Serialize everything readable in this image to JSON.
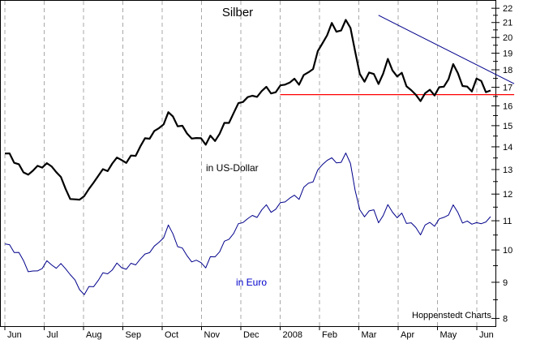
{
  "chart_data": {
    "type": "line",
    "title": "Silber",
    "credit": "Hoppenstedt Charts",
    "x_ticks": [
      "Jun",
      "Jul",
      "Aug",
      "Sep",
      "Oct",
      "Nov",
      "Dec",
      "2008",
      "Feb",
      "Mar",
      "Apr",
      "May",
      "Jun"
    ],
    "y_scale": "log",
    "y_ticks": [
      8,
      9,
      10,
      11,
      12,
      13,
      14,
      15,
      16,
      17,
      18,
      19,
      20,
      21,
      22
    ],
    "ylim": [
      7.8,
      22.6
    ],
    "grid": "vertical-dashed",
    "series": [
      {
        "name": "in US-Dollar",
        "color": "#000000",
        "label_color": "#000000",
        "values": [
          13.7,
          13.6,
          13.4,
          13.2,
          12.8,
          12.9,
          12.9,
          13.1,
          13.2,
          13.2,
          13.1,
          13.0,
          12.6,
          12.2,
          11.9,
          11.7,
          11.8,
          12.0,
          12.1,
          12.5,
          12.8,
          12.9,
          13.0,
          13.3,
          13.4,
          13.5,
          13.3,
          13.5,
          13.7,
          14.0,
          14.3,
          14.5,
          14.7,
          14.8,
          15.2,
          15.6,
          15.4,
          15.1,
          14.9,
          14.6,
          14.5,
          14.3,
          14.4,
          14.2,
          14.4,
          14.3,
          14.7,
          15.0,
          15.2,
          15.7,
          16.0,
          16.3,
          16.5,
          16.4,
          16.6,
          16.8,
          16.9,
          16.8,
          16.7,
          17.0,
          17.3,
          17.2,
          17.4,
          17.3,
          17.6,
          17.8,
          18.2,
          19.0,
          19.6,
          20.3,
          20.8,
          20.4,
          20.6,
          21.0,
          20.7,
          19.2,
          17.6,
          17.4,
          17.9,
          17.6,
          17.3,
          17.8,
          18.5,
          18.1,
          17.6,
          17.7,
          17.2,
          16.8,
          16.5,
          16.4,
          16.6,
          16.8,
          16.7,
          16.9,
          17.0,
          17.6,
          18.2,
          17.8,
          17.2,
          16.9,
          16.8,
          17.6,
          17.2,
          16.8,
          16.9
        ]
      },
      {
        "name": "in Euro",
        "color": "#00008b",
        "label_color": "#0000cc",
        "values": [
          10.2,
          10.1,
          10.0,
          9.9,
          9.6,
          9.4,
          9.3,
          9.3,
          9.5,
          9.6,
          9.5,
          9.5,
          9.5,
          9.4,
          9.3,
          9.0,
          8.8,
          8.7,
          8.8,
          8.9,
          9.1,
          9.2,
          9.3,
          9.4,
          9.5,
          9.5,
          9.4,
          9.5,
          9.6,
          9.7,
          9.8,
          10.0,
          10.1,
          10.2,
          10.5,
          10.8,
          10.5,
          10.2,
          10.0,
          9.8,
          9.7,
          9.6,
          9.6,
          9.5,
          9.7,
          9.8,
          10.0,
          10.2,
          10.4,
          10.6,
          10.8,
          11.0,
          11.1,
          11.1,
          11.2,
          11.4,
          11.5,
          11.4,
          11.4,
          11.6,
          11.8,
          11.8,
          11.9,
          11.9,
          12.2,
          12.4,
          12.6,
          12.9,
          13.2,
          13.5,
          13.4,
          13.3,
          13.4,
          13.6,
          13.3,
          12.2,
          11.3,
          11.2,
          11.4,
          11.3,
          11.0,
          11.2,
          11.5,
          11.4,
          11.1,
          11.2,
          11.0,
          10.9,
          10.7,
          10.6,
          10.8,
          10.9,
          10.9,
          11.0,
          11.1,
          11.3,
          11.5,
          11.3,
          11.0,
          10.9,
          10.9,
          11.0,
          10.8,
          11.0,
          11.2
        ]
      }
    ],
    "reference_lines": [
      {
        "kind": "horizontal",
        "y": 16.6,
        "x_from": 7.0,
        "x_to": 12.95,
        "color": "#ff0000"
      },
      {
        "kind": "trend",
        "x1": 9.5,
        "y1": 21.5,
        "x2": 12.95,
        "y2": 17.2,
        "color": "#00008b"
      }
    ]
  }
}
